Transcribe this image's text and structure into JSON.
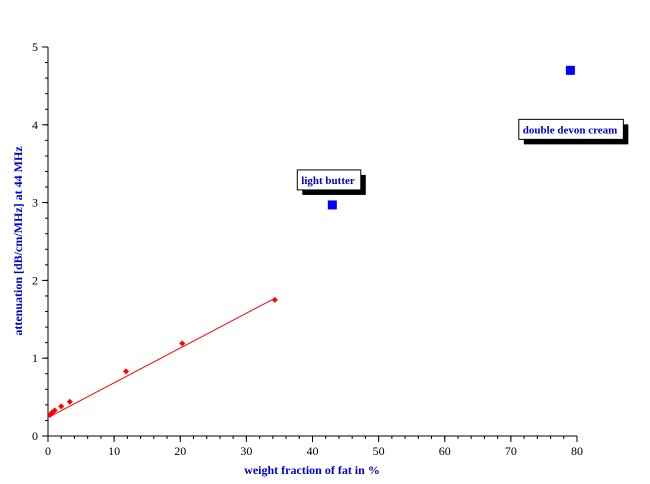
{
  "chart_data": {
    "type": "scatter",
    "xlabel": "weight fraction of fat in %",
    "ylabel": "attenuation [dB/cm/MHz] at 44 MHz",
    "xlim": [
      0,
      80
    ],
    "ylim": [
      0,
      5
    ],
    "xticks": [
      0,
      10,
      20,
      30,
      40,
      50,
      60,
      70,
      80
    ],
    "yticks": [
      0,
      1,
      2,
      3,
      4,
      5
    ],
    "x_minor_step": 2,
    "y_minor_step": 0.2,
    "grid": false,
    "series": [
      {
        "marker": "diamond",
        "color": "#ff0000",
        "points": [
          {
            "x": 0.3,
            "y": 0.27
          },
          {
            "x": 0.6,
            "y": 0.3
          },
          {
            "x": 1.0,
            "y": 0.33
          },
          {
            "x": 2.0,
            "y": 0.38
          },
          {
            "x": 3.3,
            "y": 0.44
          },
          {
            "x": 11.8,
            "y": 0.83
          },
          {
            "x": 20.3,
            "y": 1.19
          },
          {
            "x": 34.3,
            "y": 1.75
          }
        ],
        "fit_line": {
          "x": [
            0.3,
            34.3
          ],
          "y": [
            0.25,
            1.77
          ]
        }
      },
      {
        "marker": "square",
        "color": "#0000ff",
        "points": [
          {
            "x": 43.0,
            "y": 2.97
          },
          {
            "x": 79.0,
            "y": 4.7
          }
        ]
      }
    ],
    "annotations": [
      {
        "text": "light butter",
        "x": 37.7,
        "y": 3.42
      },
      {
        "text": "double devon cream",
        "x": 71.2,
        "y": 4.07
      }
    ]
  }
}
